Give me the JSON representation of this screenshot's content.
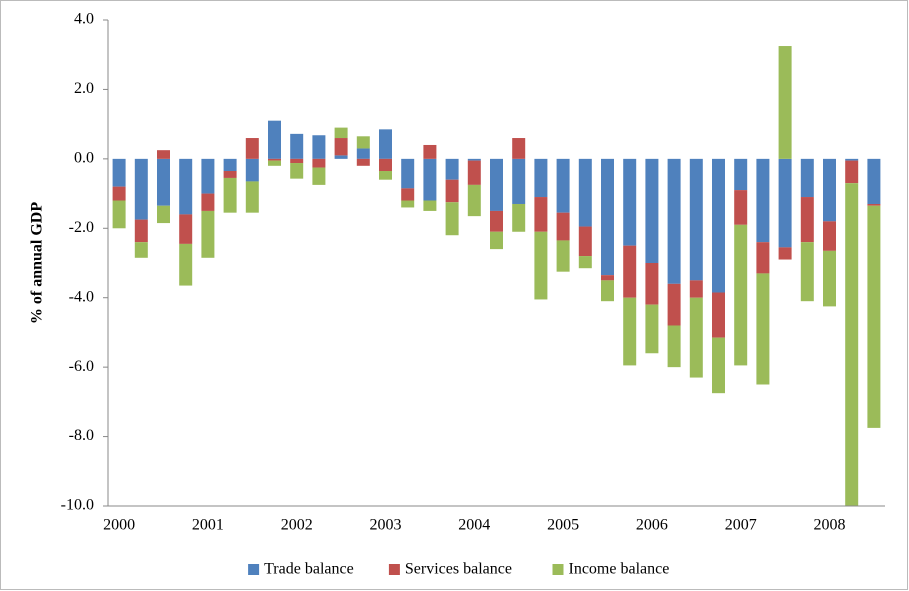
{
  "chart_data": {
    "type": "bar",
    "stacked": true,
    "ylabel": "% of annual GDP",
    "categories": [
      "2000",
      null,
      null,
      null,
      "2001",
      null,
      null,
      null,
      "2002",
      null,
      null,
      null,
      "2003",
      null,
      null,
      null,
      "2004",
      null,
      null,
      null,
      "2005",
      null,
      null,
      null,
      "2006",
      null,
      null,
      null,
      "2007",
      null,
      null,
      null,
      "2008",
      null,
      null
    ],
    "series": [
      {
        "name": "Trade balance",
        "color": "#4f81bd",
        "values": [
          -0.8,
          -1.75,
          -1.35,
          -1.6,
          -1.0,
          -0.35,
          -0.65,
          1.1,
          0.72,
          0.68,
          0.1,
          0.3,
          0.85,
          -0.85,
          -1.2,
          -0.6,
          -0.05,
          -1.5,
          -1.3,
          -1.1,
          -1.55,
          -1.95,
          -3.35,
          -2.5,
          -3.0,
          -3.6,
          -3.5,
          -3.85,
          -0.9,
          -2.4,
          -2.55,
          -1.1,
          -1.8,
          -0.05,
          -1.3
        ]
      },
      {
        "name": "Services balance",
        "color": "#c0504d",
        "values": [
          -0.4,
          -0.65,
          0.25,
          -0.85,
          -0.5,
          -0.2,
          0.6,
          -0.05,
          -0.12,
          -0.25,
          0.5,
          -0.2,
          -0.35,
          -0.35,
          0.4,
          -0.65,
          -0.7,
          -0.6,
          0.6,
          -1.0,
          -0.8,
          -0.85,
          -0.15,
          -1.5,
          -1.2,
          -1.2,
          -0.5,
          -1.3,
          -1.0,
          -0.9,
          -0.35,
          -1.3,
          -0.85,
          -0.65,
          -0.05
        ]
      },
      {
        "name": "Income balance",
        "color": "#9bbb59",
        "values": [
          -0.8,
          -0.45,
          -0.5,
          -1.2,
          -1.35,
          -1.0,
          -0.9,
          -0.15,
          -0.45,
          -0.5,
          0.3,
          0.35,
          -0.25,
          -0.2,
          -0.3,
          -0.95,
          -0.9,
          -0.5,
          -0.8,
          -1.95,
          -0.9,
          -0.35,
          -0.6,
          -1.95,
          -1.4,
          -1.2,
          -2.3,
          -1.6,
          -4.05,
          -3.2,
          3.25,
          -1.7,
          -1.6,
          -9.4,
          -6.4
        ]
      }
    ],
    "ylim": [
      -10,
      4
    ],
    "yticks": [
      {
        "value": -10,
        "label": "-10.0"
      },
      {
        "value": -8,
        "label": "-8.0"
      },
      {
        "value": -6,
        "label": "-6.0"
      },
      {
        "value": -4,
        "label": "-4.0"
      },
      {
        "value": -2,
        "label": "-2.0"
      },
      {
        "value": 0,
        "label": "0.0"
      },
      {
        "value": 2,
        "label": "2.0"
      },
      {
        "value": 4,
        "label": "4.0"
      }
    ],
    "legend": "bottom",
    "grid": false
  }
}
